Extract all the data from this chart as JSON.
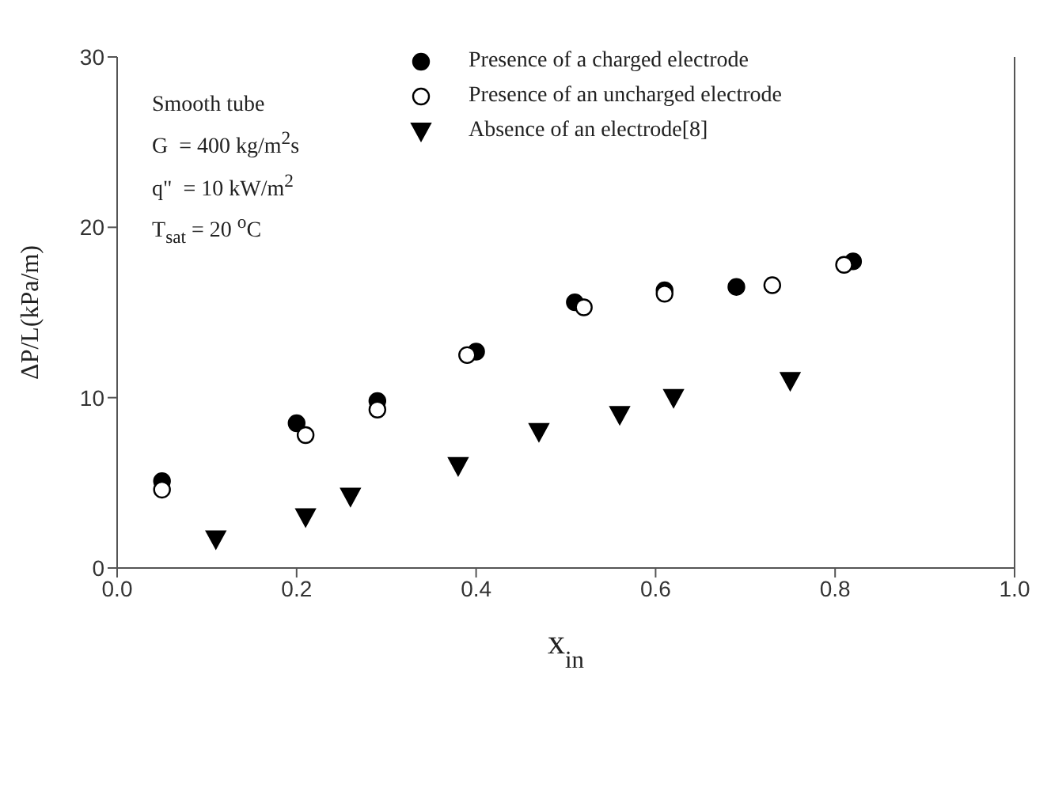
{
  "chart_data": {
    "type": "scatter",
    "xlabel": "x$_{in}$",
    "ylabel": "ΔP/L(kPa/m)",
    "xlim": [
      0,
      1
    ],
    "xticks": [
      {
        "value": 0,
        "label": "0.0"
      },
      {
        "value": 0.2,
        "label": "0.2"
      },
      {
        "value": 0.4,
        "label": "0.4"
      },
      {
        "value": 0.6,
        "label": "0.6"
      },
      {
        "value": 0.8,
        "label": "0.8"
      },
      {
        "value": 1,
        "label": "1.0"
      }
    ],
    "ylim": [
      0,
      30
    ],
    "yticks": [
      0,
      10,
      20,
      30
    ],
    "grid": false,
    "legend": "top",
    "annotations": [
      "Smooth tube",
      "G  = 400 kg/m$^{2}$s",
      "q\"  = 10 kW/m$^{2}$",
      "T$_{sat}$ = 20 $^{o}$C"
    ],
    "series": [
      {
        "name": "Presence of a charged electrode",
        "color": "#000000",
        "marker": "circle",
        "x": [
          0.05,
          0.2,
          0.29,
          0.4,
          0.51,
          0.61,
          0.69,
          0.82
        ],
        "values": [
          5.1,
          8.5,
          9.8,
          12.7,
          15.6,
          16.3,
          16.5,
          18.0
        ]
      },
      {
        "name": "Presence of an uncharged electrode",
        "color": "#ffffff",
        "marker": "circle",
        "x": [
          0.05,
          0.21,
          0.29,
          0.39,
          0.52,
          0.61,
          0.73,
          0.81
        ],
        "values": [
          4.6,
          7.8,
          9.3,
          12.5,
          15.3,
          16.1,
          16.6,
          17.8
        ]
      },
      {
        "name": "Absence of an electrode[8]",
        "color": "#000000",
        "marker": "triangle",
        "x": [
          0.11,
          0.21,
          0.26,
          0.38,
          0.47,
          0.56,
          0.62,
          0.75
        ],
        "values": [
          1.7,
          3.0,
          4.2,
          6.0,
          8.0,
          9.0,
          10.0,
          11.0
        ]
      }
    ]
  }
}
